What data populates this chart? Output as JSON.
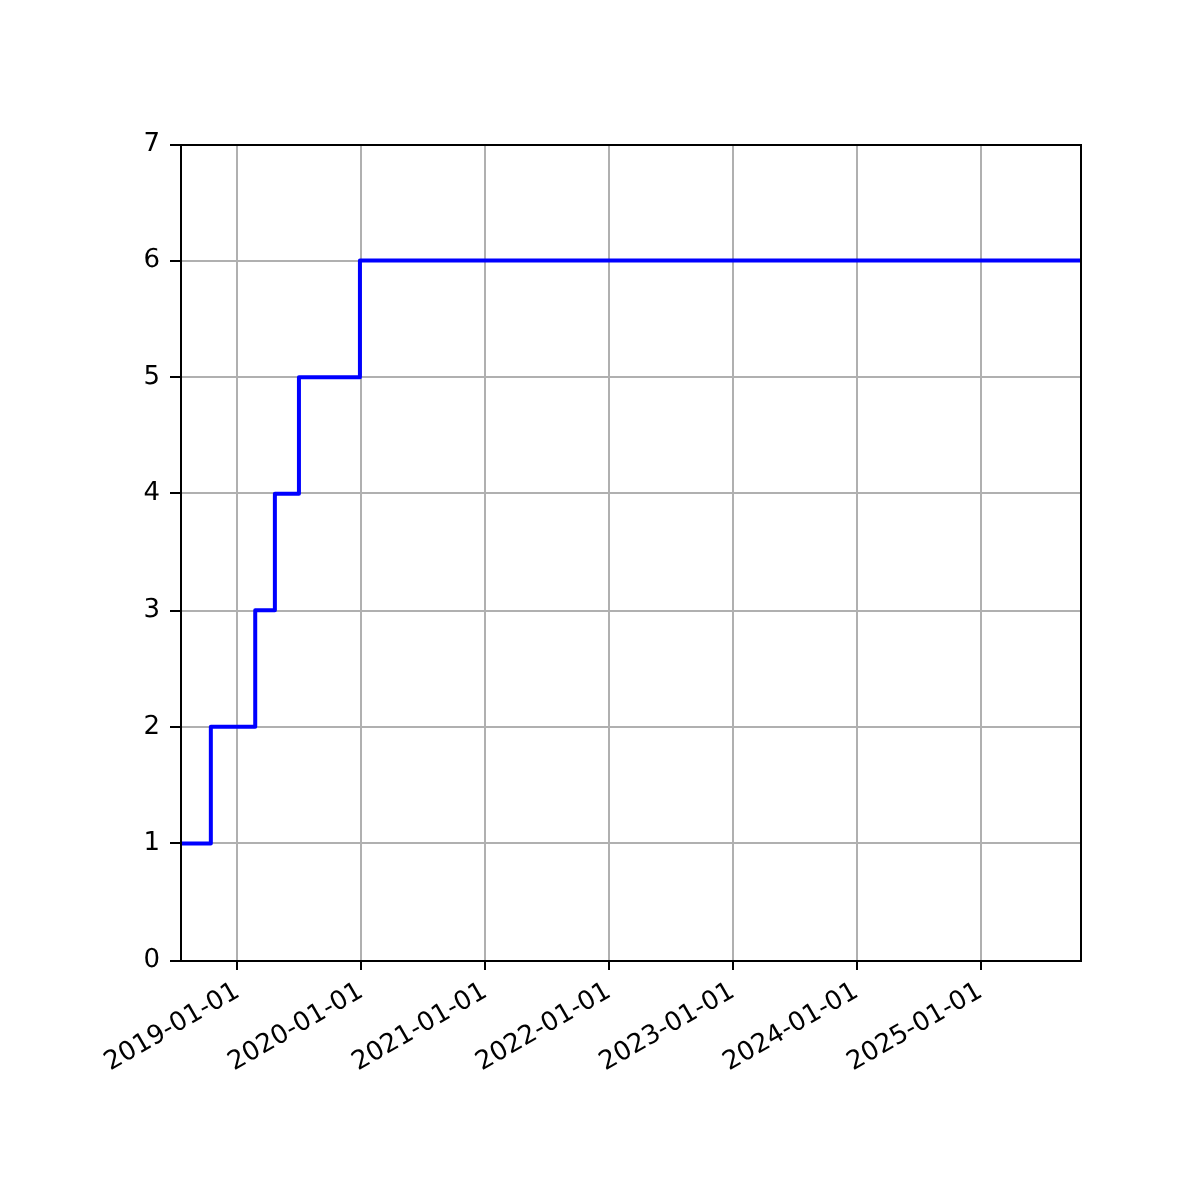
{
  "chart_data": {
    "type": "step",
    "x": [
      "2018-07-15",
      "2018-10-14",
      "2019-02-22",
      "2019-04-21",
      "2019-07-01",
      "2019-12-28",
      "2025-10-22"
    ],
    "values": [
      1,
      2,
      3,
      4,
      5,
      6,
      6
    ],
    "color": "#0000ff",
    "marker": "none",
    "line_style": "solid",
    "xlim": [
      "2018-07-15",
      "2025-10-22"
    ],
    "xticks": [
      "2019-01-01",
      "2020-01-01",
      "2021-01-01",
      "2022-01-01",
      "2023-01-01",
      "2024-01-01",
      "2025-01-01"
    ],
    "ylim": [
      0,
      7
    ],
    "yticks": [
      0,
      1,
      2,
      3,
      4,
      5,
      6,
      7
    ],
    "grid": true,
    "legend": false
  }
}
